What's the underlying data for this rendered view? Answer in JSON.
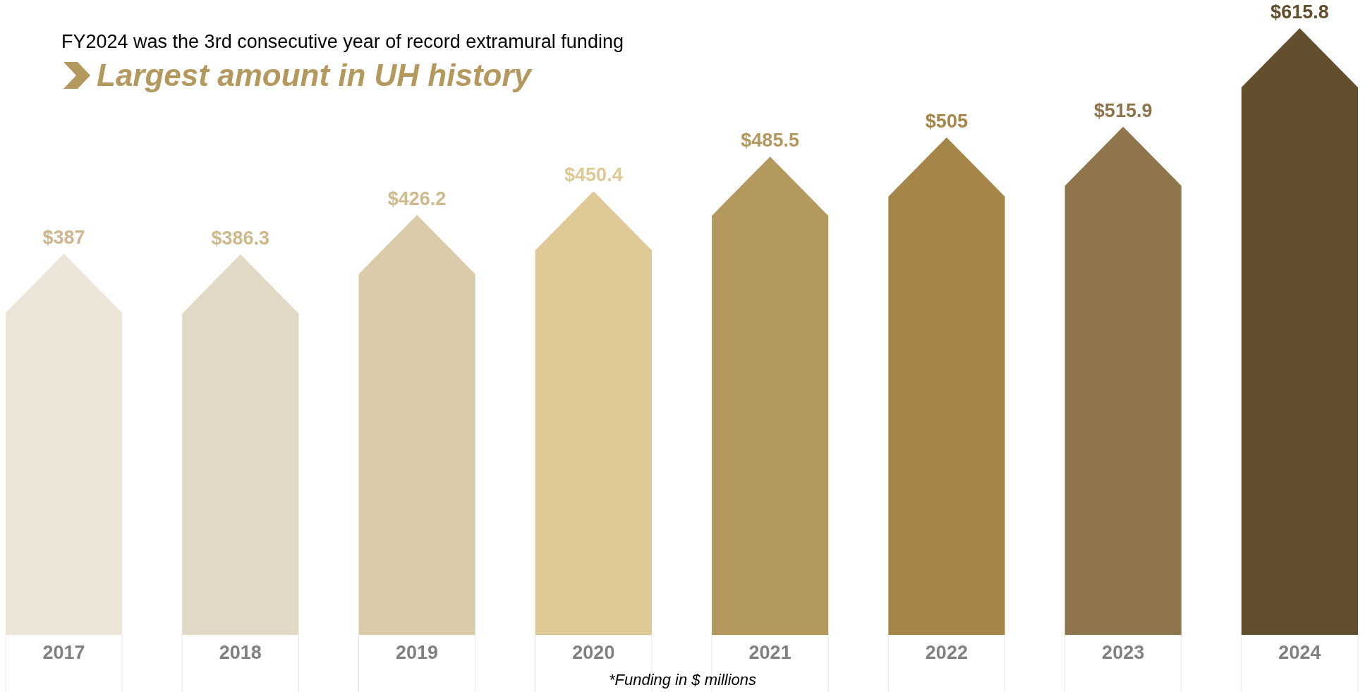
{
  "chart_data": {
    "type": "bar",
    "title": "FY2024 was the 3rd consecutive year of record extramural funding",
    "subtitle": "Largest amount in UH history",
    "categories": [
      "2017",
      "2018",
      "2019",
      "2020",
      "2021",
      "2022",
      "2023",
      "2024"
    ],
    "values": [
      387,
      386.3,
      426.2,
      450.4,
      485.5,
      505,
      515.9,
      615.8
    ],
    "colors": [
      "#ede5d8",
      "#e1d8c5",
      "#dacbaa",
      "#dfc997",
      "#b4995e",
      "#a58648",
      "#8e754b",
      "#634f2e"
    ],
    "value_labels": [
      "$387",
      "$386.3",
      "$426.2",
      "$450.4",
      "$485.5",
      "$505",
      "$515.9",
      "$615.8"
    ],
    "annotations": [
      "*Funding in $ millions"
    ]
  }
}
